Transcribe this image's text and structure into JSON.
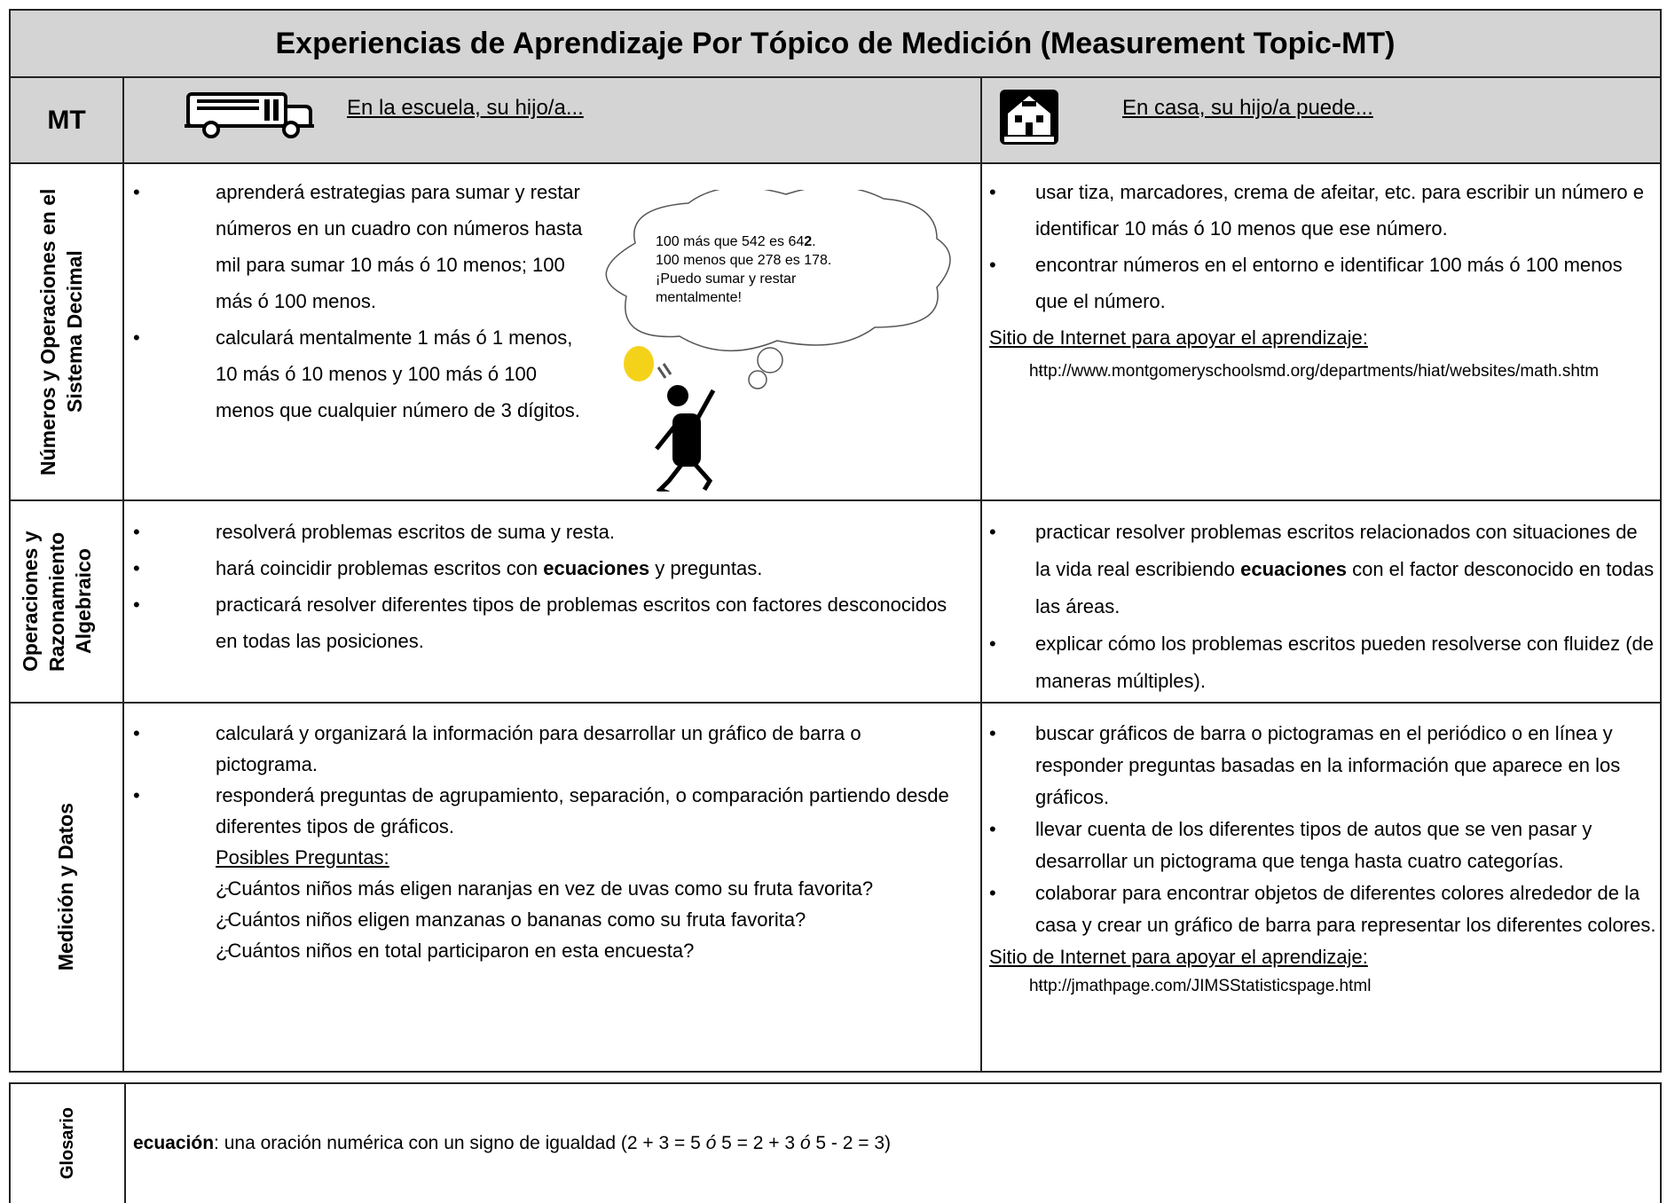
{
  "title": "Experiencias de Aprendizaje Por Tópico de Medición (Measurement Topic-MT)",
  "header": {
    "mt": "MT",
    "school": "En la escuela, su hijo/a...",
    "home": "En casa, su hijo/a puede..."
  },
  "rows": [
    {
      "topic": "Números y Operaciones en el Sistema Decimal",
      "school": [
        "aprenderá estrategias para sumar y restar números en un cuadro con números hasta mil para sumar 10 más ó 10 menos; 100 más ó 100 menos.",
        "calculará mentalmente 1 más ó 1 menos, 10 más ó 10 menos y 100 más ó 100 menos que cualquier número de 3 dígitos."
      ],
      "bubble": [
        "100 más que 542 es 64",
        "2",
        ".",
        "100 menos que 278 es 178.",
        "¡Puedo sumar y restar mentalmente!"
      ],
      "home": [
        "usar tiza, marcadores, crema de afeitar, etc. para escribir un número e identificar 10 más ó 10 menos que ese número.",
        "encontrar números en el entorno e identificar 100 más ó 100 menos que el número."
      ],
      "website_label": "Sitio de Internet para apoyar el aprendizaje:",
      "websites": [
        "http://www.montgomeryschoolsmd.org/departments/hiat/websites/math.shtm"
      ]
    },
    {
      "topic": "Operaciones y Razonamiento Algebraico",
      "school": [
        "resolverá problemas escritos de suma y resta.",
        [
          "hará coincidir problemas escritos con ",
          "ecuaciones",
          " y preguntas."
        ],
        "practicará resolver diferentes tipos de problemas escritos con factores desconocidos en todas las posiciones."
      ],
      "home": [
        [
          "practicar resolver problemas escritos relacionados con situaciones de la vida real escribiendo ",
          "ecuaciones",
          " con el factor desconocido en todas las áreas."
        ],
        "explicar cómo los problemas escritos pueden resolverse con fluidez (de maneras múltiples)."
      ]
    },
    {
      "topic": "Medición y Datos",
      "school": [
        "calculará y organizará la información para desarrollar un gráfico de barra o pictograma.",
        "responderá preguntas de agrupamiento, separación, o comparación partiendo desde diferentes tipos de gráficos."
      ],
      "questions_label": "Posibles Preguntas:",
      "questions": [
        "¿Cuántos niños más eligen naranjas en vez de uvas como su fruta favorita?",
        "¿Cuántos niños eligen manzanas o bananas como su fruta favorita?",
        "¿Cuántos niños en total participaron en esta encuesta?"
      ],
      "home": [
        "buscar gráficos de barra o pictogramas en el periódico o en línea y responder preguntas basadas en la información que aparece en los gráficos.",
        "llevar cuenta de los diferentes tipos de autos que se ven pasar y desarrollar un pictograma que tenga hasta cuatro categorías.",
        "colaborar para encontrar objetos de diferentes colores alrededor de la casa y crear un gráfico de barra para representar los diferentes colores."
      ],
      "website_label": "Sitio de Internet para apoyar el aprendizaje:",
      "websites": [
        "http://jmathpage.com/JIMSStatisticspage.html"
      ]
    }
  ],
  "glossary": {
    "label": "Glosario",
    "parts": [
      "ecuación",
      ": una oración numérica con un signo de igualdad (2 + 3 = 5 ",
      "ó",
      " 5 = 2 + 3 ",
      "ó",
      " 5 - 2 = 3)"
    ]
  }
}
